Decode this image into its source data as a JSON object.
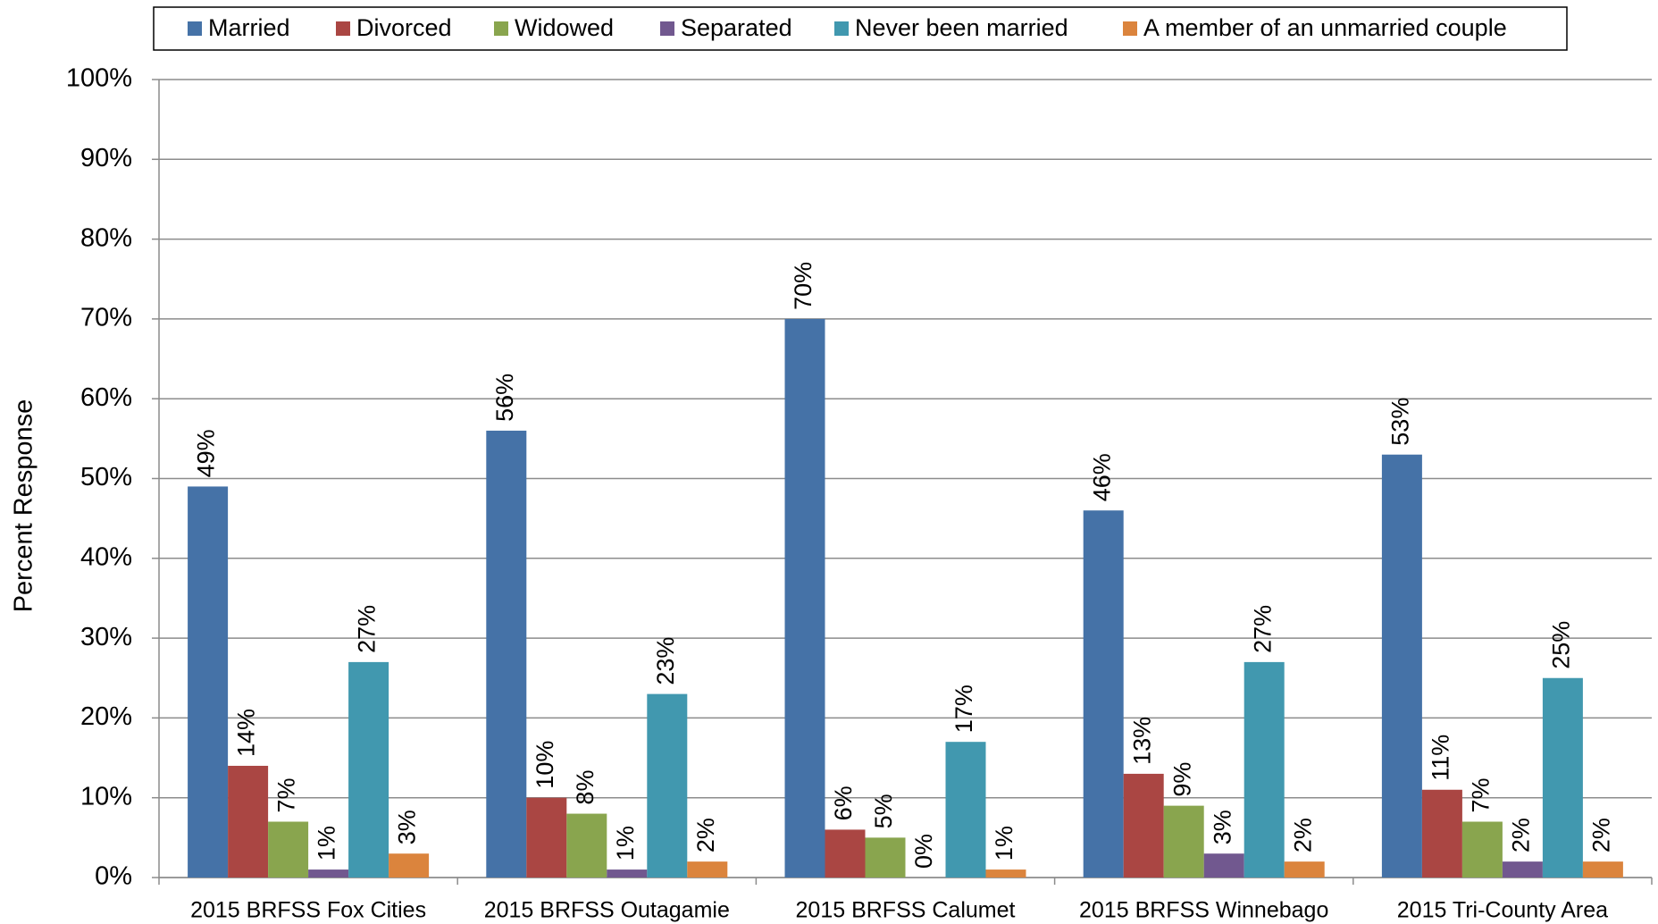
{
  "chart_data": {
    "type": "bar",
    "y_label": "Percent Response",
    "categories": [
      "2015 BRFSS Fox Cities",
      "2015 BRFSS Outagamie",
      "2015 BRFSS Calumet",
      "2015 BRFSS Winnebago",
      "2015 Tri-County Area"
    ],
    "series": [
      {
        "name": "Married",
        "color": "#4572a7",
        "values": [
          49,
          56,
          70,
          46,
          53
        ],
        "value_labels": [
          "49%",
          "56%",
          "70%",
          "46%",
          "53%"
        ]
      },
      {
        "name": "Divorced",
        "color": "#aa4643",
        "values": [
          14,
          10,
          6,
          13,
          11
        ],
        "value_labels": [
          "14%",
          "10%",
          "6%",
          "13%",
          "11%"
        ]
      },
      {
        "name": "Widowed",
        "color": "#89a54e",
        "values": [
          7,
          8,
          5,
          9,
          7
        ],
        "value_labels": [
          "7%",
          "8%",
          "5%",
          "9%",
          "7%"
        ]
      },
      {
        "name": "Separated",
        "color": "#71588f",
        "values": [
          1,
          1,
          0,
          3,
          2
        ],
        "value_labels": [
          "1%",
          "1%",
          "0%",
          "3%",
          "2%"
        ]
      },
      {
        "name": "Never been married",
        "color": "#4198af",
        "values": [
          27,
          23,
          17,
          27,
          25
        ],
        "value_labels": [
          "27%",
          "23%",
          "17%",
          "27%",
          "25%"
        ]
      },
      {
        "name": "A member of an unmarried couple",
        "color": "#db843d",
        "values": [
          3,
          2,
          1,
          2,
          2
        ],
        "value_labels": [
          "3%",
          "2%",
          "1%",
          "2%",
          "2%"
        ]
      }
    ],
    "ylim": [
      0,
      100
    ],
    "yticks": [
      {
        "value": 0,
        "label": "0%"
      },
      {
        "value": 10,
        "label": "10%"
      },
      {
        "value": 20,
        "label": "20%"
      },
      {
        "value": 30,
        "label": "30%"
      },
      {
        "value": 40,
        "label": "40%"
      },
      {
        "value": 50,
        "label": "50%"
      },
      {
        "value": 60,
        "label": "60%"
      },
      {
        "value": 70,
        "label": "70%"
      },
      {
        "value": 80,
        "label": "80%"
      },
      {
        "value": 90,
        "label": "90%"
      },
      {
        "value": 100,
        "label": "100%"
      }
    ],
    "grid": true,
    "legend": "top"
  }
}
